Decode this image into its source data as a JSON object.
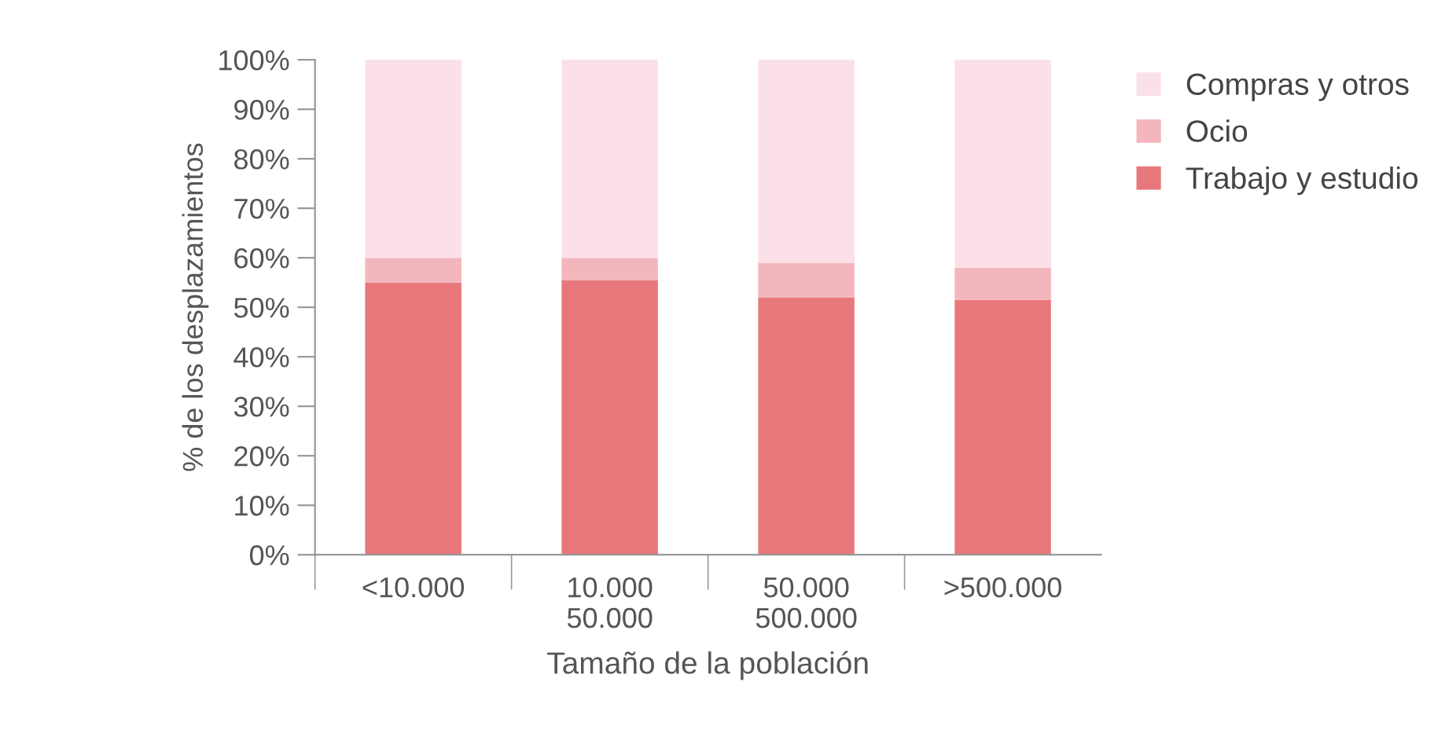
{
  "chart_data": {
    "type": "bar",
    "stacked": true,
    "xlabel": "Tamaño de la población",
    "ylabel": "% de los desplazamientos",
    "categories": [
      "<10.000",
      "10.000\n50.000",
      "50.000\n500.000",
      ">500.000"
    ],
    "series": [
      {
        "name": "Trabajo y estudio",
        "color": "#e8777c",
        "values": [
          55,
          55.5,
          52,
          51.5
        ]
      },
      {
        "name": "Ocio",
        "color": "#f3b6bc",
        "values": [
          5,
          4.5,
          7,
          6.5
        ]
      },
      {
        "name": "Compras y otros",
        "color": "#fbe1e7",
        "values": [
          40,
          40,
          41,
          42
        ]
      }
    ],
    "ylim": [
      0,
      100
    ],
    "yticks": [
      {
        "value": 0,
        "label": "0%"
      },
      {
        "value": 10,
        "label": "10%"
      },
      {
        "value": 20,
        "label": "20%"
      },
      {
        "value": 30,
        "label": "30%"
      },
      {
        "value": 40,
        "label": "40%"
      },
      {
        "value": 50,
        "label": "50%"
      },
      {
        "value": 60,
        "label": "60%"
      },
      {
        "value": 70,
        "label": "70%"
      },
      {
        "value": 80,
        "label": "80%"
      },
      {
        "value": 90,
        "label": "90%"
      },
      {
        "value": 100,
        "label": "100%"
      }
    ],
    "grid": false,
    "legend": "top right"
  }
}
